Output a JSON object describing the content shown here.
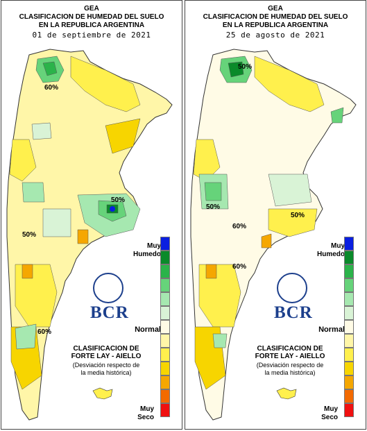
{
  "panels": [
    {
      "org": "GEA",
      "title_line1": "CLASIFICACION DE HUMEDAD DEL SUELO",
      "title_line2": "EN LA REPUBLICA ARGENTINA",
      "date": "01 de septiembre de 2021",
      "contour_labels": [
        "60%",
        "50%",
        "50%",
        "60%"
      ]
    },
    {
      "org": "GEA",
      "title_line1": "CLASIFICACION DE HUMEDAD DEL SUELO",
      "title_line2": "EN LA REPUBLICA ARGENTINA",
      "date": "25 de agosto de 2021",
      "contour_labels": [
        "50%",
        "50%",
        "60%",
        "50%",
        "60%"
      ]
    }
  ],
  "legend": {
    "top_label_1": "Muy",
    "top_label_2": "Humedo",
    "mid_label": "Normal",
    "bottom_label_1": "Muy",
    "bottom_label_2": "Seco",
    "colors": [
      "#0a1fe0",
      "#0a8a2a",
      "#2bb34a",
      "#66d37a",
      "#a6e8b0",
      "#d9f3d6",
      "#fffbe6",
      "#fff6a8",
      "#fff04d",
      "#f7d500",
      "#f5a700",
      "#f36a00",
      "#f01010"
    ]
  },
  "branding": {
    "bcr_text": "BCR",
    "class_line1": "CLASIFICACION DE",
    "class_line2": "FORTE LAY - AIELLO",
    "sub_line1": "(Desviación respecto de",
    "sub_line2": "la media histórica)"
  }
}
